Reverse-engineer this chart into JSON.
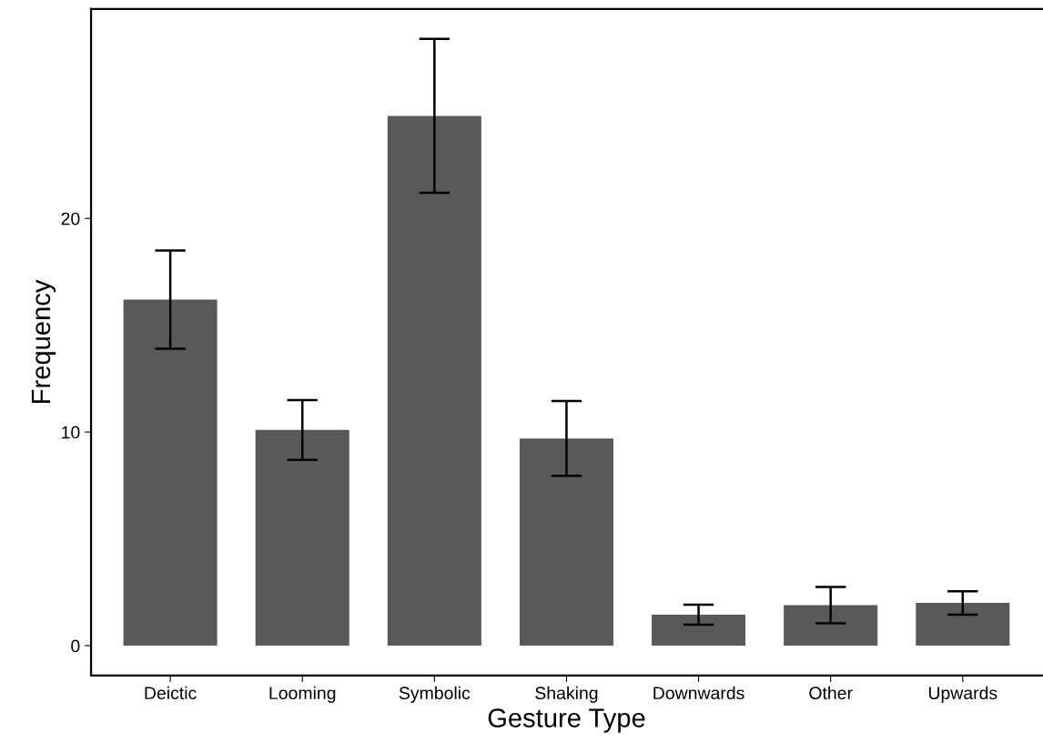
{
  "chart_data": {
    "type": "bar",
    "xlabel": "Gesture Type",
    "ylabel": "Frequency",
    "categories": [
      "Deictic",
      "Looming",
      "Symbolic",
      "Shaking",
      "Downwards",
      "Other",
      "Upwards"
    ],
    "values": [
      16.2,
      10.1,
      24.8,
      9.7,
      1.45,
      1.9,
      2.0
    ],
    "errors": [
      2.3,
      1.4,
      3.6,
      1.75,
      0.47,
      0.85,
      0.55
    ],
    "color": "#595959",
    "ylim": [
      -1.4,
      29.8
    ],
    "yticks": [
      0,
      10,
      20
    ],
    "grid": false
  }
}
